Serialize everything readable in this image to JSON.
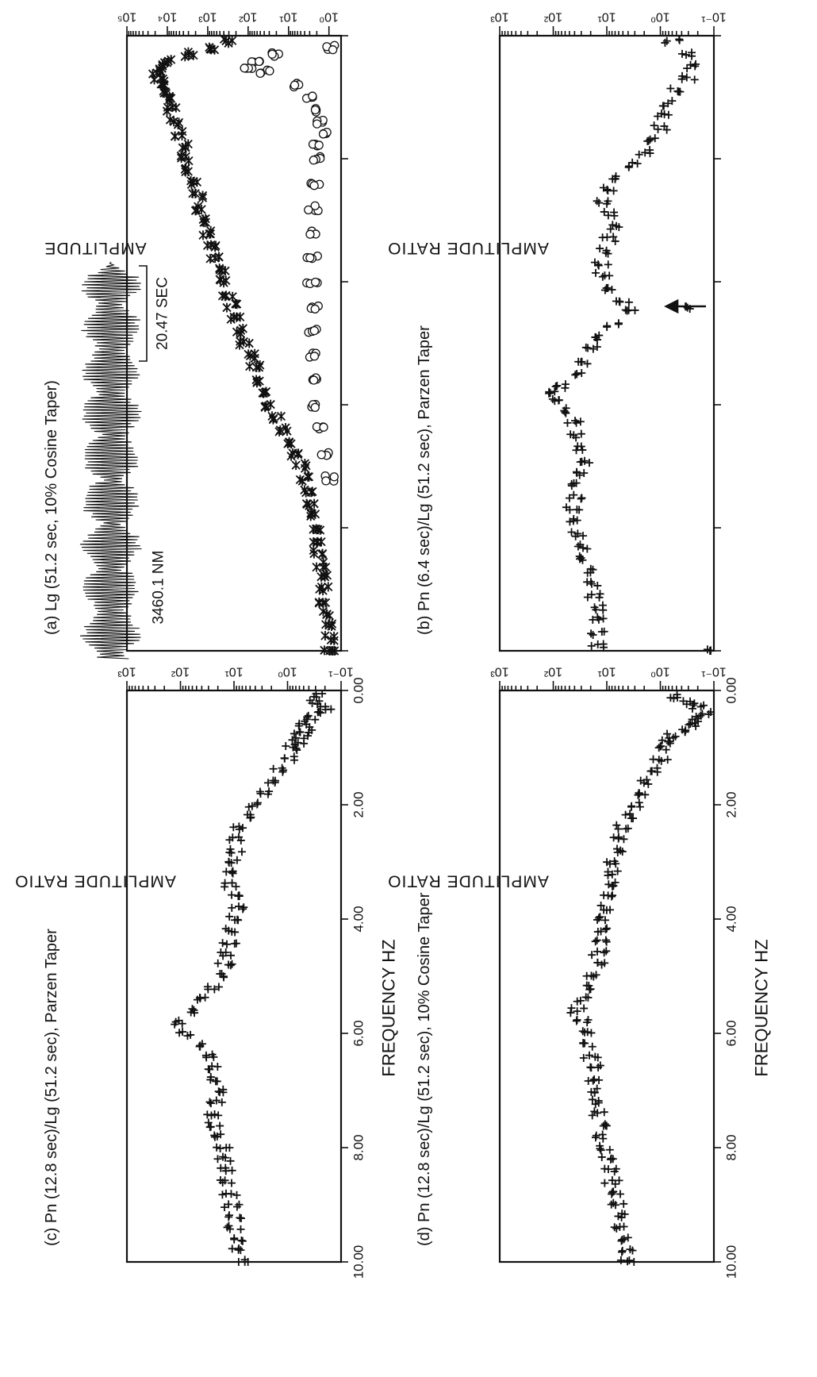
{
  "chart_data": [
    {
      "id": "a",
      "type": "scatter",
      "title": "(a) Lg (51.2 sec, 10% Cosine Taper)",
      "ylabel": "AMPLITUDE",
      "xlabel": "",
      "xlim": [
        0,
        10
      ],
      "ylim_log10": [
        -0.3,
        5
      ],
      "y_scale": "log",
      "x_ticks": [
        0,
        2,
        4,
        6,
        8,
        10
      ],
      "x_tick_labels": [],
      "y_ticks": [
        0,
        1,
        2,
        3,
        4,
        5
      ],
      "y_tick_labels": [
        "10⁰",
        "10¹",
        "10²",
        "10³",
        "10⁴",
        "10⁵"
      ],
      "inset": {
        "scale_time": "20.47 SEC",
        "scale_amplitude": "3460.1 NM"
      },
      "series": [
        {
          "marker": "star",
          "x": [
            0.1,
            0.2,
            0.3,
            0.4,
            0.5,
            0.6,
            0.7,
            0.8,
            0.9,
            1.0,
            1.2,
            1.4,
            1.6,
            1.8,
            2.0,
            2.2,
            2.4,
            2.6,
            2.8,
            3.0,
            3.2,
            3.4,
            3.6,
            3.8,
            4.0,
            4.2,
            4.4,
            4.6,
            4.8,
            5.0,
            5.2,
            5.4,
            5.6,
            5.8,
            6.0,
            6.2,
            6.4,
            6.6,
            6.8,
            7.0,
            7.2,
            7.4,
            7.6,
            7.8,
            8.0,
            8.2,
            8.4,
            8.6,
            8.8,
            9.0,
            9.2,
            9.4,
            9.6,
            9.8,
            10.0
          ],
          "y": [
            300,
            800,
            3000,
            9000,
            15000,
            18000,
            16000,
            14000,
            11000,
            9500,
            8000,
            6500,
            5000,
            4200,
            3500,
            2700,
            2200,
            1800,
            1500,
            1200,
            950,
            800,
            650,
            500,
            420,
            330,
            260,
            200,
            160,
            120,
            90,
            70,
            50,
            38,
            28,
            20,
            14,
            10,
            7,
            5,
            4,
            3.5,
            3,
            2.6,
            2.2,
            2,
            1.8,
            1.6,
            1.5,
            1.4,
            1.3,
            1.2,
            1.1,
            1.0,
            1.0
          ]
        },
        {
          "marker": "circle",
          "x": [
            0.2,
            0.3,
            0.4,
            0.5,
            0.6,
            0.8,
            1.0,
            1.2,
            1.4,
            1.6,
            1.8,
            2.0,
            2.4,
            2.8,
            3.2,
            3.6,
            4.0,
            4.4,
            4.8,
            5.2,
            5.6,
            6.0,
            6.4,
            6.8,
            7.2
          ],
          "y": [
            0.9,
            20,
            60,
            100,
            40,
            6,
            3,
            2,
            1.8,
            1.5,
            2,
            2,
            2.2,
            2.5,
            2.6,
            2.6,
            2.6,
            2.5,
            2.4,
            2.4,
            2.3,
            2,
            1.6,
            1.3,
            1.0
          ]
        }
      ]
    },
    {
      "id": "b",
      "type": "scatter",
      "title": "(b) Pn (6.4 sec)/Lg (51.2 sec), Parzen Taper",
      "ylabel": "AMPLITUDE RATIO",
      "xlabel": "",
      "xlim": [
        0,
        10
      ],
      "ylim_log10": [
        -1,
        3
      ],
      "y_scale": "log",
      "x_ticks": [
        0,
        2,
        4,
        6,
        8,
        10
      ],
      "x_tick_labels": [],
      "y_ticks": [
        -1,
        0,
        1,
        2,
        3
      ],
      "y_tick_labels": [
        "10⁻¹",
        "10⁰",
        "10¹",
        "10²",
        "10³"
      ],
      "annotation": "arrow at 4.4 Hz",
      "series": [
        {
          "marker": "plus",
          "x": [
            0.1,
            0.3,
            0.5,
            0.7,
            0.9,
            1.1,
            1.3,
            1.5,
            1.7,
            1.9,
            2.1,
            2.3,
            2.5,
            2.7,
            2.9,
            3.1,
            3.3,
            3.5,
            3.7,
            3.9,
            4.1,
            4.3,
            4.4,
            4.5,
            4.7,
            4.9,
            5.1,
            5.3,
            5.5,
            5.7,
            5.8,
            5.9,
            6.1,
            6.3,
            6.5,
            6.7,
            6.9,
            7.1,
            7.3,
            7.5,
            7.7,
            7.9,
            8.1,
            8.3,
            8.5,
            8.7,
            8.9,
            9.1,
            9.3,
            9.5,
            9.7,
            9.9,
            10.0
          ],
          "y": [
            0.6,
            0.35,
            0.25,
            0.3,
            0.5,
            0.7,
            0.9,
            1.0,
            1.3,
            2.0,
            3.5,
            6,
            9,
            12,
            10,
            8,
            9,
            11,
            13,
            12,
            9,
            5,
            0.35,
            4,
            8,
            12,
            18,
            25,
            40,
            70,
            120,
            100,
            60,
            40,
            35,
            30,
            28,
            30,
            35,
            40,
            45,
            40,
            35,
            30,
            25,
            20,
            18,
            17,
            16,
            16,
            15,
            14,
            0.1
          ]
        }
      ]
    },
    {
      "id": "c",
      "type": "scatter",
      "title": "(c) Pn (12.8 sec)/Lg (51.2 sec), Parzen Taper",
      "ylabel": "AMPLITUDE RATIO",
      "xlabel": "FREQUENCY HZ",
      "xlim": [
        0,
        10
      ],
      "ylim_log10": [
        -1,
        3
      ],
      "y_scale": "log",
      "x_ticks": [
        0,
        2,
        4,
        6,
        8,
        10
      ],
      "x_tick_labels": [
        "0.00",
        "2.00",
        "4.00",
        "6.00",
        "8.00",
        "10.00"
      ],
      "y_ticks": [
        -1,
        0,
        1,
        2,
        3
      ],
      "y_tick_labels": [
        "10⁻¹",
        "10⁰",
        "10¹",
        "10²",
        "10³"
      ],
      "series": [
        {
          "marker": "plus",
          "x": [
            0.1,
            0.2,
            0.3,
            0.4,
            0.5,
            0.6,
            0.7,
            0.8,
            0.9,
            1.0,
            1.2,
            1.4,
            1.6,
            1.8,
            2.0,
            2.2,
            2.4,
            2.6,
            2.8,
            3.0,
            3.2,
            3.4,
            3.6,
            3.8,
            4.0,
            4.2,
            4.4,
            4.6,
            4.8,
            5.0,
            5.2,
            5.4,
            5.6,
            5.8,
            6.0,
            6.2,
            6.4,
            6.6,
            6.8,
            7.0,
            7.2,
            7.4,
            7.6,
            7.8,
            8.0,
            8.2,
            8.4,
            8.6,
            8.8,
            9.0,
            9.2,
            9.4,
            9.6,
            9.8,
            10.0
          ],
          "y": [
            0.25,
            0.35,
            0.2,
            0.3,
            0.4,
            0.5,
            0.45,
            0.55,
            0.6,
            0.8,
            1.0,
            1.5,
            2.0,
            3.0,
            4.5,
            6,
            9,
            10,
            9,
            10,
            12,
            11,
            10,
            9,
            10,
            11,
            12,
            13,
            15,
            18,
            25,
            40,
            60,
            100,
            80,
            40,
            30,
            25,
            22,
            20,
            22,
            25,
            22,
            18,
            16,
            15,
            14,
            13,
            12,
            11,
            10,
            10,
            9,
            8,
            7
          ]
        }
      ]
    },
    {
      "id": "d",
      "type": "scatter",
      "title": "(d) Pn (12.8 sec)/Lg (51.2 sec), 10% Cosine Taper",
      "ylabel": "AMPLITUDE RATIO",
      "xlabel": "FREQUENCY HZ",
      "xlim": [
        0,
        10
      ],
      "ylim_log10": [
        -1,
        3
      ],
      "y_scale": "log",
      "x_ticks": [
        0,
        2,
        4,
        6,
        8,
        10
      ],
      "x_tick_labels": [
        "0.00",
        "2.00",
        "4.00",
        "6.00",
        "8.00",
        "10.00"
      ],
      "y_ticks": [
        -1,
        0,
        1,
        2,
        3
      ],
      "y_tick_labels": [
        "10⁻¹",
        "10⁰",
        "10¹",
        "10²",
        "10³"
      ],
      "series": [
        {
          "marker": "plus",
          "x": [
            0.1,
            0.2,
            0.3,
            0.4,
            0.5,
            0.6,
            0.7,
            0.8,
            0.9,
            1.0,
            1.2,
            1.4,
            1.6,
            1.8,
            2.0,
            2.2,
            2.4,
            2.6,
            2.8,
            3.0,
            3.2,
            3.4,
            3.6,
            3.8,
            4.0,
            4.2,
            4.4,
            4.6,
            4.8,
            5.0,
            5.2,
            5.4,
            5.6,
            5.8,
            6.0,
            6.2,
            6.4,
            6.6,
            6.8,
            7.0,
            7.2,
            7.4,
            7.6,
            7.8,
            8.0,
            8.2,
            8.4,
            8.6,
            8.8,
            9.0,
            9.2,
            9.4,
            9.6,
            9.8,
            10.0
          ],
          "y": [
            0.5,
            0.3,
            0.2,
            0.15,
            0.2,
            0.3,
            0.4,
            0.6,
            0.7,
            0.8,
            1.0,
            1.3,
            1.7,
            2.2,
            3.0,
            4.0,
            5.0,
            6.0,
            7.0,
            7.5,
            8.0,
            8.5,
            9.0,
            10,
            11,
            12,
            13,
            14,
            15,
            18,
            22,
            28,
            35,
            30,
            25,
            22,
            20,
            18,
            17,
            16,
            15,
            14,
            13,
            12,
            11,
            10,
            9,
            8,
            7,
            6.5,
            6,
            5.5,
            5,
            4.5,
            4
          ]
        }
      ]
    }
  ]
}
